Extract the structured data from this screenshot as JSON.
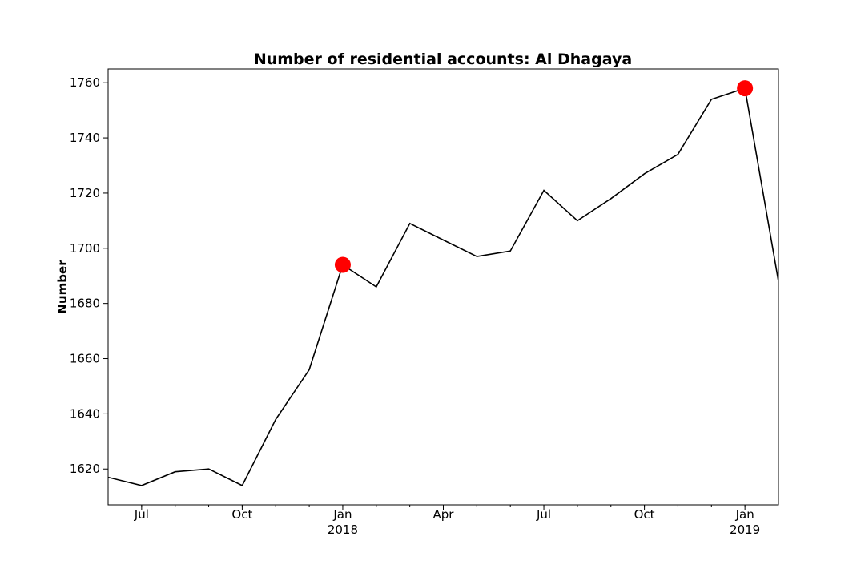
{
  "chart_data": {
    "type": "line",
    "title": "Number of residential accounts: Al Dhagaya",
    "xlabel": "",
    "ylabel": "Number",
    "ylim": [
      1607,
      1765
    ],
    "xlim": [
      "2017-06-01",
      "2019-02-01"
    ],
    "yticks": [
      1620,
      1640,
      1660,
      1680,
      1700,
      1720,
      1740,
      1760
    ],
    "xticks_major": [
      {
        "date": "2017-07-01",
        "label": "Jul",
        "sublabel": ""
      },
      {
        "date": "2017-10-01",
        "label": "Oct",
        "sublabel": ""
      },
      {
        "date": "2018-01-01",
        "label": "Jan",
        "sublabel": "2018"
      },
      {
        "date": "2018-04-01",
        "label": "Apr",
        "sublabel": ""
      },
      {
        "date": "2018-07-01",
        "label": "Jul",
        "sublabel": ""
      },
      {
        "date": "2018-10-01",
        "label": "Oct",
        "sublabel": ""
      },
      {
        "date": "2019-01-01",
        "label": "Jan",
        "sublabel": "2019"
      }
    ],
    "series": [
      {
        "x": [
          "2017-06-01",
          "2017-07-01",
          "2017-08-01",
          "2017-09-01",
          "2017-10-01",
          "2017-11-01",
          "2017-12-01",
          "2018-01-01",
          "2018-02-01",
          "2018-03-01",
          "2018-04-01",
          "2018-05-01",
          "2018-06-01",
          "2018-07-01",
          "2018-08-01",
          "2018-09-01",
          "2018-10-01",
          "2018-11-01",
          "2018-12-01",
          "2019-01-01",
          "2019-02-01"
        ],
        "values": [
          1617,
          1614,
          1619,
          1620,
          1614,
          1638,
          1656,
          1694,
          1686,
          1709,
          1703,
          1697,
          1699,
          1721,
          1710,
          1718,
          1727,
          1734,
          1754,
          1758,
          1688
        ],
        "color": "#000000"
      }
    ],
    "highlights": [
      {
        "x": "2018-01-01",
        "y": 1694,
        "color": "#ff0000"
      },
      {
        "x": "2019-01-01",
        "y": 1758,
        "color": "#ff0000"
      }
    ],
    "grid": false,
    "legend": "none"
  }
}
